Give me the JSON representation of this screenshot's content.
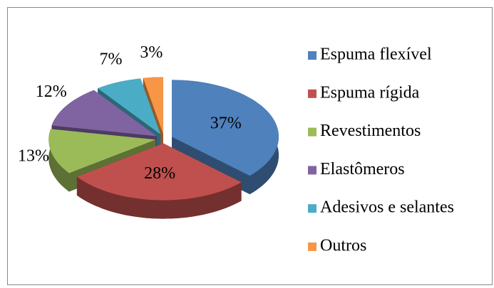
{
  "chart_data": {
    "type": "pie",
    "categories": [
      "Espuma flexível",
      "Espuma rígida",
      "Revestimentos",
      "Elastômeros",
      "Adesivos e selantes",
      "Outros"
    ],
    "values": [
      37,
      28,
      13,
      12,
      7,
      3
    ],
    "value_labels": [
      "37%",
      "28%",
      "13%",
      "12%",
      "7%",
      "3%"
    ],
    "colors": [
      "#4f81bd",
      "#c0504d",
      "#9bbb59",
      "#8064a2",
      "#4bacc6",
      "#f79646"
    ],
    "legend": "right"
  }
}
